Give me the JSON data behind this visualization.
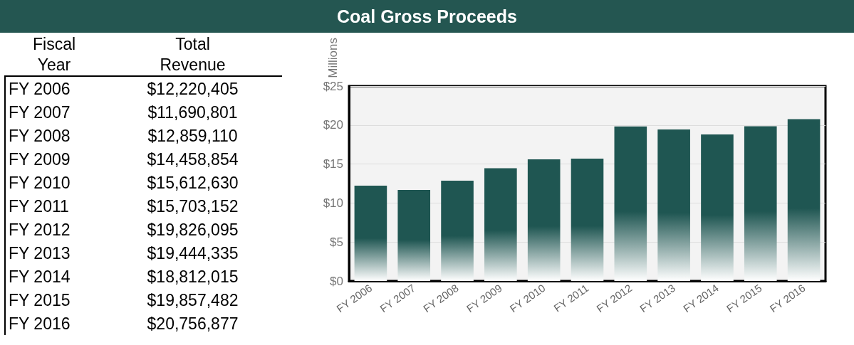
{
  "chart_data": [
    {
      "type": "other",
      "annotations": [
        "Fiscal Year",
        "Total Revenue",
        "FY 2006",
        "$12,220,405",
        "FY 2007",
        "$11,690,801",
        "FY 2008",
        "$12,859,110",
        "FY 2009",
        "$14,458,854",
        "FY 2010",
        "$15,612,630",
        "FY 2011",
        "$15,703,152",
        "FY 2012",
        "$19,826,095",
        "FY 2013",
        "$19,444,335",
        "FY 2014",
        "$18,812,015",
        "FY 2015",
        "$19,857,482",
        "FY 2016",
        "$20,756,877"
      ]
    },
    {
      "type": "bar",
      "title": "Coal Gross Proceeds",
      "ylabel": "Millions",
      "categories": [
        "FY 2006",
        "FY 2007",
        "FY 2008",
        "FY 2009",
        "FY 2010",
        "FY 2011",
        "FY 2012",
        "FY 2013",
        "FY 2014",
        "FY 2015",
        "FY 2016"
      ],
      "values": [
        12.22,
        11.69,
        12.86,
        14.46,
        15.61,
        15.7,
        19.83,
        19.44,
        18.81,
        19.86,
        20.76
      ],
      "color": "#1f5652",
      "ylim": [
        0,
        25
      ],
      "yticks": [
        {
          "value": 0,
          "label": "$0"
        },
        {
          "value": 5,
          "label": "$5"
        },
        {
          "value": 10,
          "label": "$10"
        },
        {
          "value": 15,
          "label": "$15"
        },
        {
          "value": 20,
          "label": "$20"
        },
        {
          "value": 25,
          "label": "$25"
        }
      ],
      "grid": "y"
    }
  ]
}
